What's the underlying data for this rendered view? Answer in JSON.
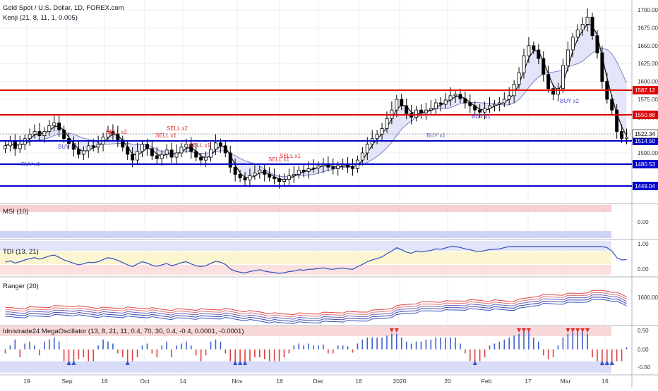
{
  "header": {
    "symbol": "Gold Spot / U.S. Dollar, 1D, FOREX.com",
    "indicator": "Kenji (21, 8, 11, 1, 0.005)"
  },
  "panes": {
    "msi": "MSI (10)",
    "tdi": "TDI (13, 21)",
    "ranger": "Ranger (20)",
    "osc": "Idnistrade24 MegaOscillator (13, 8, 21, 11, 0.4, 70, 30, 0.4, -0.4, 0.0001, -0.0001)"
  },
  "colors": {
    "up": "#ffffff",
    "down": "#000000",
    "support": "#0000cc",
    "resistance": "#e00000",
    "ma": "#222222",
    "buy": "#5050d0",
    "sell": "#e03030"
  },
  "chart_data": {
    "type": "candlestick",
    "x_ticks": [
      "19",
      "Sep",
      "16",
      "Oct",
      "14",
      "Nov",
      "18",
      "Dec",
      "16",
      "2020",
      "20",
      "Feb",
      "17",
      "Mar",
      "16"
    ],
    "y_ticks": [
      1500,
      1525,
      1550,
      1575,
      1600,
      1625,
      1650,
      1675,
      1700
    ],
    "ylim": [
      1430,
      1712
    ],
    "last_price": "1522.34",
    "levels": [
      {
        "label": "1587.12",
        "kind": "resistance"
      },
      {
        "label": "1550.68",
        "kind": "resistance"
      },
      {
        "label": "1514.50",
        "kind": "support"
      },
      {
        "label": "1480.53",
        "kind": "support"
      },
      {
        "label": "1449.04",
        "kind": "support"
      }
    ],
    "annotations": [
      "BUY x1",
      "BUY x1",
      "SELL x2",
      "SELL x1",
      "SELL x2",
      "SELL x1",
      "SELL x1",
      "SELL x1",
      "BUY x1",
      "BUY x1",
      "BUY x2"
    ],
    "closes": [
      1510,
      1516,
      1506,
      1512,
      1520,
      1526,
      1530,
      1524,
      1530,
      1538,
      1542,
      1532,
      1520,
      1513,
      1505,
      1498,
      1503,
      1510,
      1508,
      1512,
      1522,
      1530,
      1526,
      1518,
      1508,
      1498,
      1490,
      1502,
      1512,
      1506,
      1496,
      1492,
      1498,
      1504,
      1494,
      1500,
      1508,
      1512,
      1502,
      1494,
      1490,
      1494,
      1505,
      1514,
      1510,
      1500,
      1480,
      1470,
      1465,
      1462,
      1468,
      1472,
      1476,
      1470,
      1466,
      1464,
      1460,
      1463,
      1468,
      1470,
      1476,
      1474,
      1478,
      1479,
      1482,
      1485,
      1480,
      1478,
      1482,
      1484,
      1480,
      1478,
      1490,
      1500,
      1512,
      1520,
      1526,
      1534,
      1548,
      1560,
      1575,
      1566,
      1555,
      1550,
      1560,
      1556,
      1560,
      1562,
      1570,
      1568,
      1574,
      1580,
      1582,
      1576,
      1570,
      1566,
      1560,
      1557,
      1562,
      1566,
      1568,
      1570,
      1575,
      1580,
      1596,
      1612,
      1636,
      1650,
      1644,
      1632,
      1610,
      1590,
      1582,
      1590,
      1622,
      1644,
      1662,
      1672,
      1680,
      1690,
      1664,
      1640,
      1600,
      1575,
      1560,
      1530,
      1520,
      1522
    ],
    "oscillator_values": [
      -0.1,
      0.1,
      0.25,
      -0.2,
      0.15,
      0.2,
      0.1,
      -0.15,
      0.2,
      0.25,
      0.3,
      0.2,
      -0.3,
      -0.4,
      -0.35,
      -0.25,
      -0.2,
      -0.3,
      -0.3,
      0.1,
      0.25,
      0.2,
      0.15,
      -0.1,
      -0.2,
      -0.35,
      -0.3,
      -0.2,
      0.1,
      0.15,
      -0.1,
      -0.2,
      0.1,
      0.2,
      -0.2,
      0.1,
      0.15,
      0.2,
      0.1,
      -0.15,
      -0.3,
      -0.15,
      0.2,
      0.25,
      0.2,
      -0.1,
      -0.3,
      -0.4,
      -0.35,
      -0.35,
      -0.3,
      -0.2,
      -0.2,
      -0.25,
      -0.3,
      -0.3,
      -0.3,
      -0.2,
      -0.1,
      0.1,
      0.15,
      0.1,
      0.15,
      0.1,
      0.1,
      0.12,
      -0.1,
      -0.1,
      0.1,
      0.1,
      0.08,
      -0.08,
      0.15,
      0.25,
      0.3,
      0.3,
      0.3,
      0.3,
      0.35,
      0.4,
      0.4,
      0.3,
      0.2,
      0.15,
      0.2,
      0.2,
      0.25,
      0.25,
      0.3,
      0.3,
      0.3,
      0.3,
      0.3,
      0.15,
      -0.1,
      -0.3,
      -0.4,
      -0.3,
      -0.2,
      0.1,
      0.15,
      0.2,
      0.25,
      0.3,
      0.35,
      0.4,
      0.45,
      0.45,
      0.3,
      0.2,
      -0.15,
      -0.25,
      -0.2,
      0.1,
      0.3,
      0.4,
      0.45,
      0.45,
      0.45,
      0.4,
      -0.2,
      -0.3,
      -0.4,
      -0.4,
      -0.35,
      -0.3,
      -0.3,
      0.05
    ],
    "osc_ticks": [
      "0.50",
      "0.00",
      "-0.50"
    ],
    "msi_ticks": [
      "0.00"
    ],
    "tdi_ticks": [
      "1.00",
      "0.00"
    ],
    "ranger_ticks": [
      "1600.00"
    ]
  }
}
